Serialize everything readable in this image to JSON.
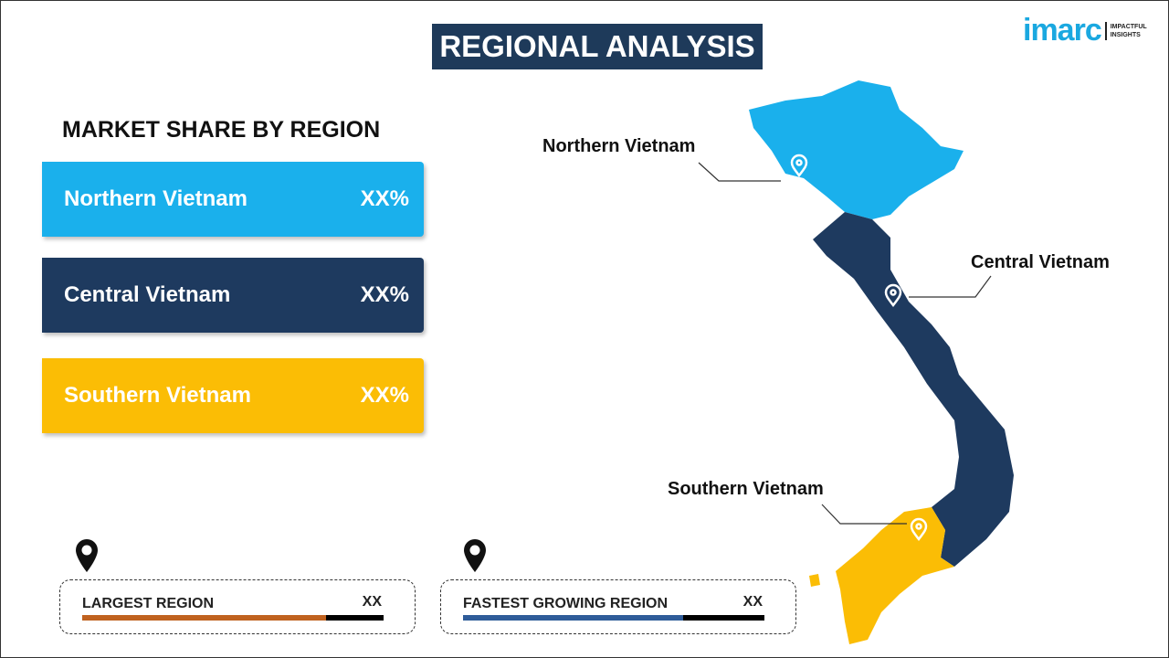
{
  "header": {
    "title": "REGIONAL ANALYSIS",
    "logo_text": "imarc",
    "logo_tagline": [
      "IMPACTFUL",
      "INSIGHTS"
    ]
  },
  "left": {
    "subtitle": "MARKET SHARE BY REGION",
    "regions": [
      {
        "name": "Northern Vietnam",
        "value": "XX%",
        "color": "#1ab0ec"
      },
      {
        "name": "Central Vietnam",
        "value": "XX%",
        "color": "#1e3a5f"
      },
      {
        "name": "Southern Vietnam",
        "value": "XX%",
        "color": "#fbbd05"
      }
    ]
  },
  "stats": [
    {
      "label": "LARGEST REGION",
      "value": "XX",
      "progress": 0.81,
      "color": "#c0621f"
    },
    {
      "label": "FASTEST GROWING REGION",
      "value": "XX",
      "progress": 0.73,
      "color": "#2f5c99"
    }
  ],
  "map": {
    "labels": [
      "Northern Vietnam",
      "Central Vietnam",
      "Southern Vietnam"
    ],
    "icon": "map-pin-icon"
  }
}
